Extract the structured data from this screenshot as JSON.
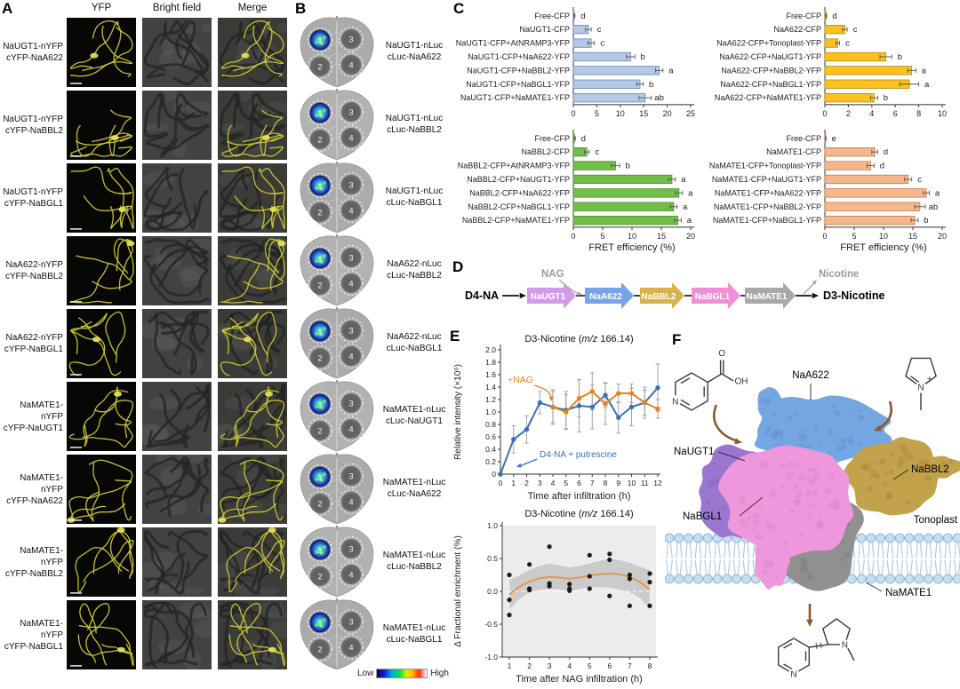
{
  "panel_a": {
    "label": "A",
    "column_headers": [
      "YFP",
      "Bright field",
      "Merge"
    ],
    "rows": [
      {
        "line1": "NaUGT1-nYFP",
        "line2": "cYFP-NaA622"
      },
      {
        "line1": "NaUGT1-nYFP",
        "line2": "cYFP-NaBBL2"
      },
      {
        "line1": "NaUGT1-nYFP",
        "line2": "cYFP-NaBGL1"
      },
      {
        "line1": "NaA622-nYFP",
        "line2": "cYFP-NaBBL2"
      },
      {
        "line1": "NaA622-nYFP",
        "line2": "cYFP-NaBGL1"
      },
      {
        "line1": "NaMATE1-nYFP",
        "line2": "cYFP-NaUGT1"
      },
      {
        "line1": "NaMATE1-nYFP",
        "line2": "cYFP-NaA622"
      },
      {
        "line1": "NaMATE1-nYFP",
        "line2": "cYFP-NaBBL2"
      },
      {
        "line1": "NaMATE1-nYFP",
        "line2": "cYFP-NaBGL1"
      }
    ]
  },
  "panel_b": {
    "label": "B",
    "rows": [
      {
        "line1": "NaUGT1-nLuc",
        "line2": "cLuc-NaA622"
      },
      {
        "line1": "NaUGT1-nLuc",
        "line2": "cLuc-NaBBL2"
      },
      {
        "line1": "NaUGT1-nLuc",
        "line2": "cLuc-NaBGL1"
      },
      {
        "line1": "NaA622-nLuc",
        "line2": "cLuc-NaBBL2"
      },
      {
        "line1": "NaA622-nLuc",
        "line2": "cLuc-NaBGL1"
      },
      {
        "line1": "NaMATE1-nLuc",
        "line2": "cLuc-NaUGT1"
      },
      {
        "line1": "NaMATE1-nLuc",
        "line2": "cLuc-NaA622"
      },
      {
        "line1": "NaMATE1-nLuc",
        "line2": "cLuc-NaBBL2"
      },
      {
        "line1": "NaMATE1-nLuc",
        "line2": "cLuc-NaBGL1"
      }
    ],
    "spot_numbers": [
      "1",
      "2",
      "3",
      "4"
    ],
    "colorbar": {
      "low": "Low",
      "high": "High"
    }
  },
  "panel_c": {
    "label": "C"
  },
  "panel_d": {
    "label": "D",
    "substrate": "D4-NA",
    "product": "D3-Nicotine",
    "cofactor": "NAG",
    "byproduct": "Nicotine",
    "enzymes": [
      {
        "name": "NaUGT1",
        "color": "#d49ae8"
      },
      {
        "name": "NaA622",
        "color": "#75a4ea"
      },
      {
        "name": "NaBBL2",
        "color": "#d9b14c"
      },
      {
        "name": "NaBGL1",
        "color": "#ee8fd8"
      },
      {
        "name": "NaMATE1",
        "color": "#a8a8a8"
      }
    ]
  },
  "panel_e": {
    "label": "E"
  },
  "panel_f": {
    "label": "F",
    "labels": {
      "naugt1": "NaUGT1",
      "naa622": "NaA622",
      "nabbl2": "NaBBL2",
      "nabgl1": "NaBGL1",
      "namate1": "NaMATE1",
      "tonoplast": "Tonoplast"
    },
    "atoms": {
      "o": "O",
      "oh": "OH",
      "n": "N",
      "plus": "+"
    },
    "colors": {
      "naugt1": "#9b76cf",
      "naa622": "#74a6e2",
      "nabbl2": "#c2a24a",
      "nabgl1": "#ef97dd",
      "namate1": "#909090",
      "membrane": "#c7ddf2"
    }
  },
  "chart_data": [
    {
      "id": "fret_naugt1",
      "type": "bar",
      "orientation": "horizontal",
      "categories": [
        "Free-CFP",
        "NaUGT1-CFP",
        "NaUGT1-CFP+AtNRAMP3-YFP",
        "NaUGT1-CFP+NaA622-YFP",
        "NaUGT1-CFP+NaBBL2-YFP",
        "NaUGT1-CFP+NaBGL1-YFP",
        "NaUGT1-CFP+NaMATE1-YFP"
      ],
      "values": [
        0.2,
        3.2,
        3.8,
        12.2,
        18.3,
        14.2,
        15.3
      ],
      "errors": [
        0.15,
        0.6,
        0.7,
        0.9,
        0.8,
        0.7,
        1.3
      ],
      "sig_letters": [
        "d",
        "c",
        "c",
        "b",
        "a",
        "b",
        "ab"
      ],
      "xlim": [
        0,
        25
      ],
      "xticks": [
        0,
        5,
        10,
        15,
        20,
        25
      ],
      "xlabel": "",
      "bar_color": "#b3c9e8",
      "bar_border": "#6b84ad"
    },
    {
      "id": "fret_naa622",
      "type": "bar",
      "orientation": "horizontal",
      "categories": [
        "Free-CFP",
        "NaA622-CFP",
        "NaA622-CFP+Tonoplast-YFP",
        "NaA622-CFP+NaUGT1-YFP",
        "NaA622-CFP+NaBBL2-YFP",
        "NaA622-CFP+NaBGL1-YFP",
        "NaA622-CFP+NaMATE1-YFP"
      ],
      "values": [
        0.1,
        1.7,
        1.1,
        5.2,
        7.4,
        7.2,
        4.2
      ],
      "errors": [
        0.05,
        0.2,
        0.15,
        0.5,
        0.35,
        0.8,
        0.3
      ],
      "sig_letters": [
        "d",
        "c",
        "c",
        "b",
        "a",
        "a",
        "b"
      ],
      "xlim": [
        0,
        10
      ],
      "xticks": [
        0,
        2,
        4,
        6,
        8,
        10
      ],
      "xlabel": "",
      "bar_color": "#fcc11e",
      "bar_border": "#b8860b"
    },
    {
      "id": "fret_nabbl2",
      "type": "bar",
      "orientation": "horizontal",
      "categories": [
        "Free-CFP",
        "NaBBL2-CFP",
        "NaBBL2-CFP+AtNRAMP3-YFP",
        "NaBBL2-CFP+NaUGT1-YFP",
        "NaBBL2-CFP+NaA622-YFP",
        "NaBBL2-CFP+NaBGL1-YFP",
        "NaBBL2-CFP+NaMATE1-YFP"
      ],
      "values": [
        0.2,
        2.3,
        7.2,
        16.8,
        18.0,
        17.1,
        17.8
      ],
      "errors": [
        0.15,
        0.4,
        0.7,
        0.6,
        0.6,
        0.6,
        0.6
      ],
      "sig_letters": [
        "d",
        "c",
        "b",
        "a",
        "a",
        "a",
        "a"
      ],
      "xlim": [
        0,
        20
      ],
      "xticks": [
        0,
        5,
        10,
        15,
        20
      ],
      "xlabel": "FRET efficiency (%)",
      "bar_color": "#72bf48",
      "bar_border": "#4a8a2a"
    },
    {
      "id": "fret_namate1",
      "type": "bar",
      "orientation": "horizontal",
      "categories": [
        "Free-CFP",
        "NaMATE1-CFP",
        "NaMATE1-CFP+Tonoplast-YFP",
        "NaMATE1-CFP+NaUGT1-YFP",
        "NaMATE1-CFP+NaA622-YFP",
        "NaMATE1-CFP+NaBBL2-YFP",
        "NaMATE1-CFP+NaBGL1-YFP"
      ],
      "values": [
        0.15,
        8.5,
        7.8,
        14.2,
        17.3,
        16.2,
        15.3
      ],
      "errors": [
        0.05,
        0.5,
        0.6,
        0.6,
        0.5,
        0.9,
        0.6
      ],
      "sig_letters": [
        "e",
        "d",
        "d",
        "c",
        "a",
        "ab",
        "b"
      ],
      "xlim": [
        0,
        20
      ],
      "xticks": [
        0,
        5,
        10,
        15,
        20
      ],
      "xlabel": "FRET efficiency (%)",
      "bar_color": "#f7b78c",
      "bar_border": "#c0774a"
    },
    {
      "id": "d3_nicotine_timecourse",
      "type": "line",
      "title_pre": "D3-Nicotine (",
      "title_italic": "m/z",
      "title_post": " 166.14)",
      "xlabel": "Time after infiltration (h)",
      "ylabel": "Relative intensity (×10⁶)",
      "xlim": [
        0,
        12
      ],
      "ylim": [
        0,
        2
      ],
      "xticks": [
        0,
        1,
        2,
        3,
        4,
        5,
        6,
        7,
        8,
        9,
        10,
        11,
        12
      ],
      "yticks": [
        0,
        0.2,
        0.4,
        0.6,
        0.8,
        1.0,
        1.2,
        1.4,
        1.6,
        1.8,
        2.0
      ],
      "series": [
        {
          "name": "D4-NA + putrescine",
          "color": "#3d6fb6",
          "x": [
            0,
            1,
            2,
            3,
            4,
            5,
            6,
            7,
            8,
            9,
            10,
            11,
            12
          ],
          "y": [
            0,
            0.56,
            0.72,
            1.15,
            1.08,
            1.03,
            1.1,
            1.08,
            1.27,
            0.91,
            1.08,
            1.15,
            1.39
          ],
          "err": [
            0,
            0.22,
            0.22,
            0.18,
            0.25,
            0.3,
            0.42,
            0.35,
            0.2,
            0.25,
            0.3,
            0.25,
            0.38
          ]
        },
        {
          "name": "+NAG",
          "color": "#e8801e",
          "x": [
            4,
            5,
            6,
            7,
            8,
            9,
            10,
            11,
            12
          ],
          "y": [
            1.08,
            1.0,
            1.22,
            1.33,
            1.13,
            1.3,
            1.3,
            1.15,
            1.05
          ],
          "err": [
            0.28,
            0.28,
            0.3,
            0.3,
            0.33,
            0.15,
            0.15,
            0.2,
            0.15
          ]
        }
      ],
      "annotations": [
        {
          "text": "+NAG",
          "color": "#e8801e"
        },
        {
          "text": "D4-NA + putrescine",
          "color": "#3d6fb6"
        }
      ]
    },
    {
      "id": "fractional_enrichment",
      "type": "scatter",
      "title_pre": "D3-Nicotine (",
      "title_italic": "m/z",
      "title_post": " 166.14)",
      "xlabel": "Time after NAG infiltration (h)",
      "ylabel": "Δ Fractional enrichment (%)",
      "xlim": [
        1,
        8
      ],
      "ylim": [
        -1,
        1
      ],
      "xticks": [
        1,
        2,
        3,
        4,
        5,
        6,
        7,
        8
      ],
      "yticks": [
        1.0,
        0.5,
        0.0,
        -0.5,
        -1.0
      ],
      "points": [
        [
          1,
          0.25
        ],
        [
          1,
          -0.13
        ],
        [
          1,
          -0.36
        ],
        [
          2,
          0.41
        ],
        [
          2,
          0.04
        ],
        [
          2,
          0.02
        ],
        [
          3,
          0.68
        ],
        [
          3,
          0.12
        ],
        [
          3,
          0.08
        ],
        [
          4,
          0.11
        ],
        [
          4,
          0.04
        ],
        [
          4,
          0.01
        ],
        [
          5,
          0.55
        ],
        [
          5,
          0.23
        ],
        [
          5,
          0.04
        ],
        [
          6,
          0.57
        ],
        [
          6,
          0.48
        ],
        [
          6,
          -0.07
        ],
        [
          7,
          0.25
        ],
        [
          7,
          0.19
        ],
        [
          7,
          -0.22
        ],
        [
          8,
          0.27
        ],
        [
          8,
          0.14
        ],
        [
          8,
          -0.22
        ]
      ],
      "trend": {
        "color": "#e8934a",
        "x": [
          1,
          1.5,
          2,
          2.5,
          3,
          3.5,
          4,
          4.5,
          5,
          5.5,
          6,
          6.5,
          7,
          7.5,
          8
        ],
        "y": [
          -0.05,
          0.07,
          0.15,
          0.2,
          0.22,
          0.21,
          0.19,
          0.21,
          0.24,
          0.26,
          0.27,
          0.26,
          0.22,
          0.14,
          0.03
        ]
      },
      "band": {
        "color": "#c4c4c4",
        "upper": [
          0.18,
          0.25,
          0.33,
          0.39,
          0.43,
          0.4,
          0.37,
          0.39,
          0.43,
          0.47,
          0.5,
          0.48,
          0.44,
          0.38,
          0.33
        ],
        "lower": [
          -0.29,
          -0.12,
          -0.02,
          0.02,
          0.03,
          0.02,
          0.0,
          0.03,
          0.06,
          0.06,
          0.05,
          0.02,
          -0.02,
          -0.1,
          -0.28
        ]
      }
    }
  ]
}
